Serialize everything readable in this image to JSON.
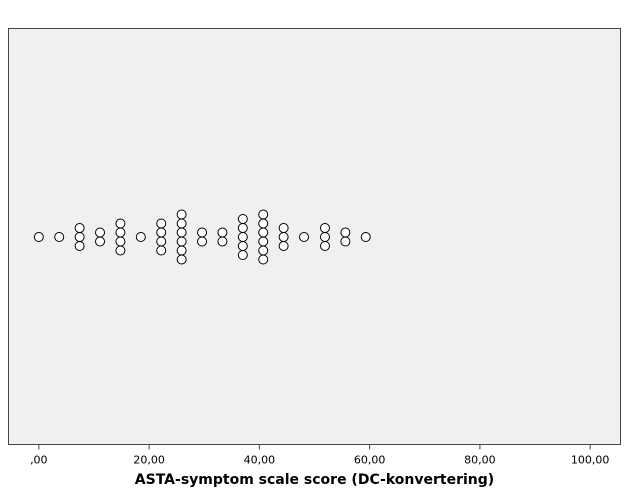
{
  "chart_data": {
    "type": "scatter",
    "subtype": "dot plot",
    "title": "",
    "xlabel": "ASTA-symptom scale score (DC-konvertering)",
    "ylabel": "",
    "xlim": [
      -5.5,
      105.5
    ],
    "x_ticks": [
      0,
      20,
      40,
      60,
      80,
      100
    ],
    "x_tick_labels": [
      ",00",
      "20,00",
      "40,00",
      "60,00",
      "80,00",
      "100,00"
    ],
    "grid": false,
    "colors": {
      "plot_background": "#f0f0f0",
      "marker_fill": "#ffffff",
      "marker_edge": "#000000"
    },
    "points": [
      {
        "x": 0.0,
        "count": 1
      },
      {
        "x": 3.7,
        "count": 1
      },
      {
        "x": 7.4,
        "count": 3
      },
      {
        "x": 11.1,
        "count": 2
      },
      {
        "x": 14.8,
        "count": 4
      },
      {
        "x": 18.5,
        "count": 1
      },
      {
        "x": 22.2,
        "count": 4
      },
      {
        "x": 25.9,
        "count": 6
      },
      {
        "x": 29.6,
        "count": 2
      },
      {
        "x": 33.3,
        "count": 2
      },
      {
        "x": 37.0,
        "count": 5
      },
      {
        "x": 40.7,
        "count": 6
      },
      {
        "x": 44.4,
        "count": 3
      },
      {
        "x": 48.1,
        "count": 1
      },
      {
        "x": 51.9,
        "count": 3
      },
      {
        "x": 55.6,
        "count": 2
      },
      {
        "x": 59.3,
        "count": 1
      }
    ]
  }
}
